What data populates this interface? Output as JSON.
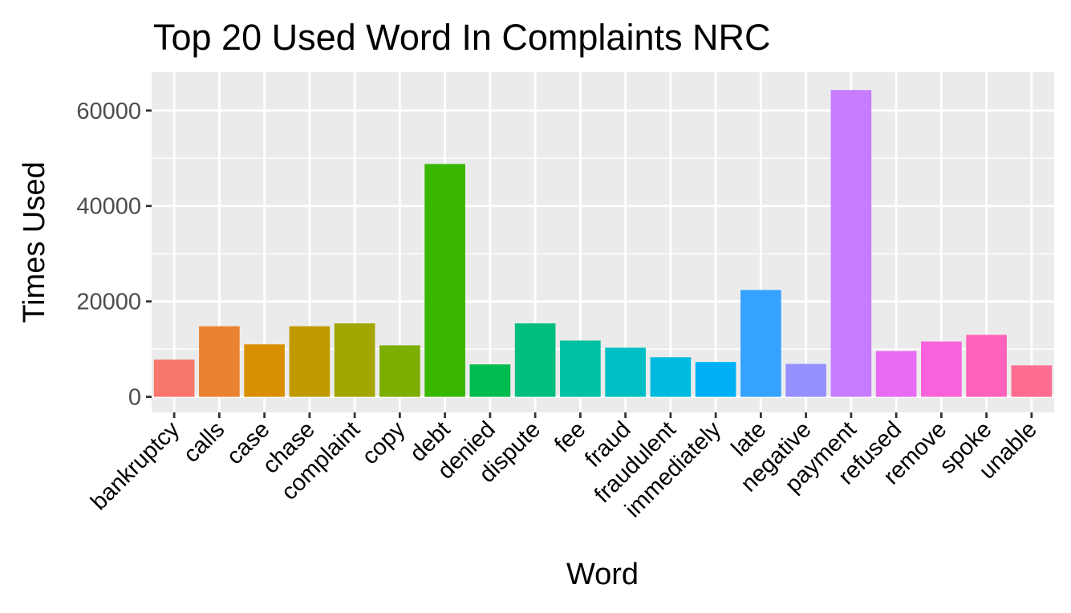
{
  "chart_data": {
    "type": "bar",
    "title": "Top 20 Used Word In Complaints NRC",
    "xlabel": "Word",
    "ylabel": "Times Used",
    "categories": [
      "bankruptcy",
      "calls",
      "case",
      "chase",
      "complaint",
      "copy",
      "debt",
      "denied",
      "dispute",
      "fee",
      "fraud",
      "fraudulent",
      "immediately",
      "late",
      "negative",
      "payment",
      "refused",
      "remove",
      "spoke",
      "unable"
    ],
    "values": [
      7800,
      14800,
      11000,
      14800,
      15400,
      10800,
      48800,
      6800,
      15400,
      11800,
      10300,
      8300,
      7300,
      22400,
      6900,
      64300,
      9600,
      11600,
      13000,
      6600
    ],
    "colors": [
      "#F8766D",
      "#EA8331",
      "#D89000",
      "#C09B00",
      "#A3A500",
      "#7CAE00",
      "#39B600",
      "#00BB4E",
      "#00BF7D",
      "#00C1A3",
      "#00BFC4",
      "#00BAE0",
      "#00B0F6",
      "#35A2FF",
      "#9590FF",
      "#C77CFF",
      "#E76BF3",
      "#FA62DB",
      "#FF62BC",
      "#FF6C91"
    ],
    "ylim": [
      0,
      67500
    ],
    "yticks": [
      0,
      20000,
      40000,
      60000
    ],
    "grid": true,
    "legend": "none",
    "panel_background": "#EBEBEB",
    "grid_color": "#FFFFFF"
  }
}
